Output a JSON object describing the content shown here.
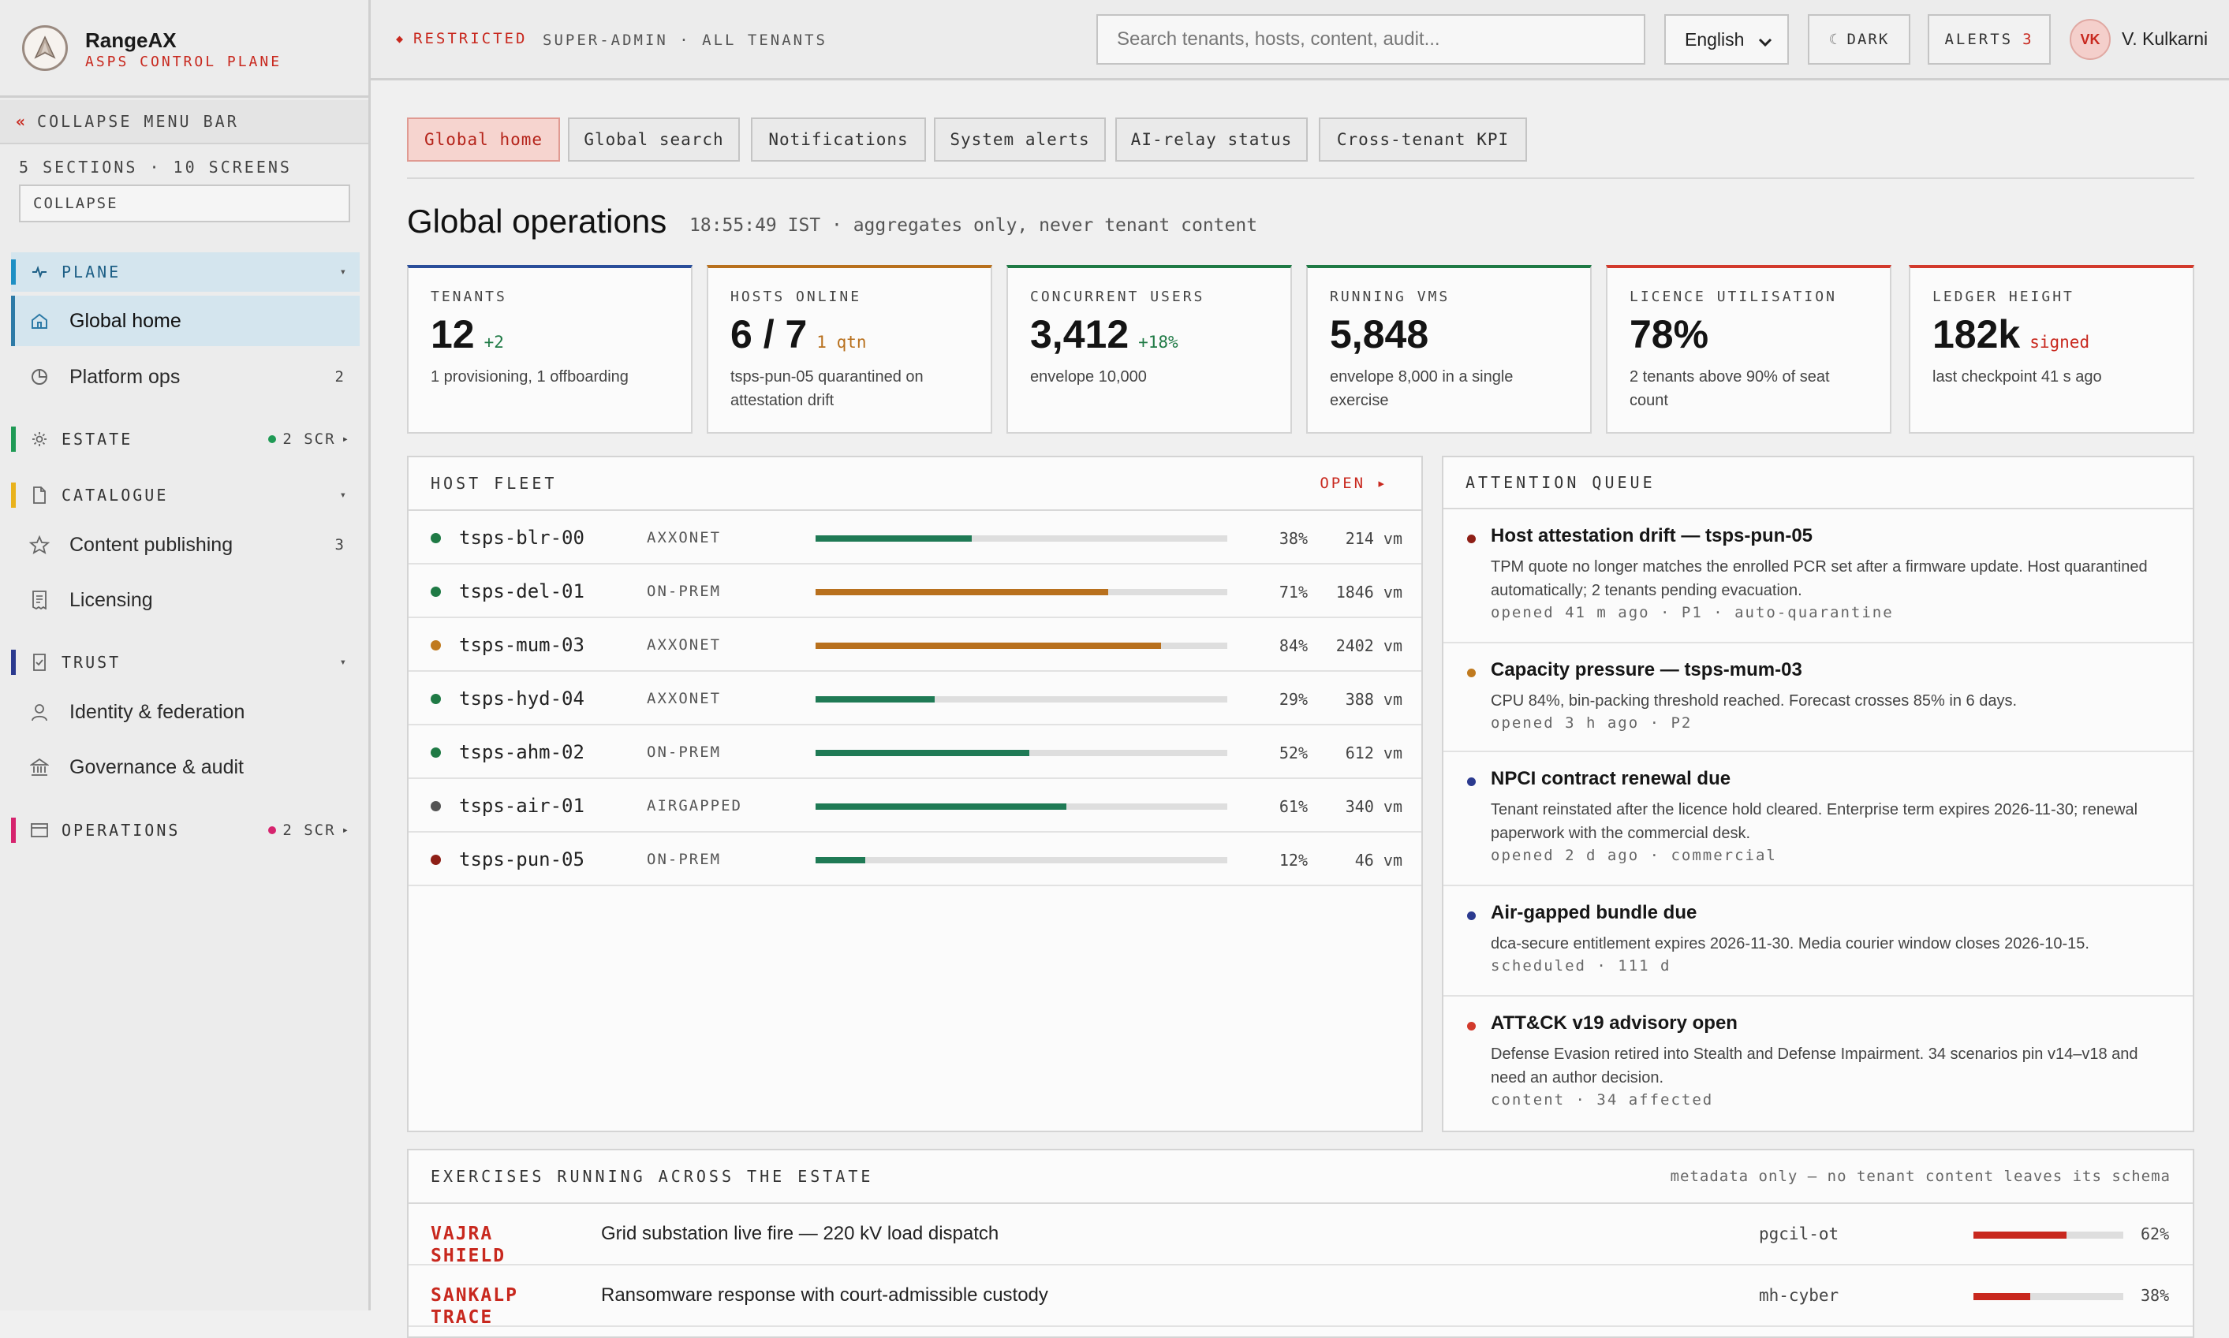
{
  "brand": {
    "name": "RangeAX",
    "subtitle": "ASPS CONTROL PLANE"
  },
  "sidebar": {
    "collapse_menu_label": "COLLAPSE MENU BAR",
    "summary": "5 SECTIONS · 10 SCREENS",
    "collapse_field_value": "COLLAPSE",
    "sections": {
      "plane": {
        "label": "PLANE",
        "color": "#1d8fc4"
      },
      "estate": {
        "label": "ESTATE",
        "meta": "2 SCR",
        "color": "#1f9a55"
      },
      "catalogue": {
        "label": "CATALOGUE",
        "color": "#e9b21c"
      },
      "trust": {
        "label": "TRUST",
        "color": "#2b3a8f"
      },
      "operations": {
        "label": "OPERATIONS",
        "meta": "2 SCR",
        "color": "#d6246e"
      }
    },
    "items": {
      "global_home": {
        "label": "Global home"
      },
      "platform_ops": {
        "label": "Platform ops",
        "count": "2"
      },
      "content_publishing": {
        "label": "Content publishing",
        "count": "3"
      },
      "licensing": {
        "label": "Licensing"
      },
      "identity": {
        "label": "Identity & federation"
      },
      "governance": {
        "label": "Governance & audit"
      }
    }
  },
  "topbar": {
    "restricted": "RESTRICTED",
    "scope": "SUPER-ADMIN · ALL TENANTS",
    "search_placeholder": "Search tenants, hosts, content, audit...",
    "language": "English",
    "dark_label": "DARK",
    "alerts_label": "ALERTS",
    "alerts_count": "3",
    "avatar_initials": "VK",
    "user_name": "V. Kulkarni"
  },
  "tabs": [
    "Global home",
    "Global search",
    "Notifications",
    "System alerts",
    "AI-relay status",
    "Cross-tenant KPI"
  ],
  "page": {
    "title": "Global operations",
    "subtitle": "18:55:49 IST · aggregates only, never tenant content"
  },
  "kpis": [
    {
      "label": "TENANTS",
      "value": "12",
      "delta": "+2",
      "delta_color": "#1f7a45",
      "note": "1 provisioning, 1 offboarding",
      "accent": "#2a4e9a"
    },
    {
      "label": "HOSTS ONLINE",
      "value": "6 / 7",
      "delta": "1 qtn",
      "delta_color": "#b8701d",
      "note": "tsps-pun-05 quarantined on attestation drift",
      "accent": "#b8701d"
    },
    {
      "label": "CONCURRENT USERS",
      "value": "3,412",
      "delta": "+18%",
      "delta_color": "#1f7a45",
      "note": "envelope 10,000",
      "accent": "#1f7a45"
    },
    {
      "label": "RUNNING VMS",
      "value": "5,848",
      "delta": "",
      "delta_color": "#1f7a45",
      "note": "envelope 8,000 in a single exercise",
      "accent": "#1f7a45"
    },
    {
      "label": "LICENCE UTILISATION",
      "value": "78%",
      "delta": "",
      "delta_color": "#c8281e",
      "note": "2 tenants above 90% of seat count",
      "accent": "#d23a2c"
    },
    {
      "label": "LEDGER HEIGHT",
      "value": "182k",
      "delta": "signed",
      "delta_color": "#c8281e",
      "note": "last checkpoint 41 s ago",
      "accent": "#d23a2c"
    }
  ],
  "fleet": {
    "title": "HOST FLEET",
    "open_label": "OPEN ▸",
    "unit": "vm",
    "rows": [
      {
        "host": "tsps-blr-00",
        "kind": "AXXONET",
        "util": 0.38,
        "pct": "38%",
        "vms": "214",
        "status_color": "#1f7a45",
        "bar_color": "#1f7a55"
      },
      {
        "host": "tsps-del-01",
        "kind": "ON-PREM",
        "util": 0.71,
        "pct": "71%",
        "vms": "1846",
        "status_color": "#1f7a45",
        "bar_color": "#b8701d"
      },
      {
        "host": "tsps-mum-03",
        "kind": "AXXONET",
        "util": 0.84,
        "pct": "84%",
        "vms": "2402",
        "status_color": "#c07a1f",
        "bar_color": "#b8701d"
      },
      {
        "host": "tsps-hyd-04",
        "kind": "AXXONET",
        "util": 0.29,
        "pct": "29%",
        "vms": "388",
        "status_color": "#1f7a45",
        "bar_color": "#1f7a55"
      },
      {
        "host": "tsps-ahm-02",
        "kind": "ON-PREM",
        "util": 0.52,
        "pct": "52%",
        "vms": "612",
        "status_color": "#1f7a45",
        "bar_color": "#1f7a55"
      },
      {
        "host": "tsps-air-01",
        "kind": "AIRGAPPED",
        "util": 0.61,
        "pct": "61%",
        "vms": "340",
        "status_color": "#555555",
        "bar_color": "#1f7a55"
      },
      {
        "host": "tsps-pun-05",
        "kind": "ON-PREM",
        "util": 0.12,
        "pct": "12%",
        "vms": "46",
        "status_color": "#8e1f16",
        "bar_color": "#1f7a55"
      }
    ]
  },
  "queue": {
    "title": "ATTENTION QUEUE",
    "items": [
      {
        "title": "Host attestation drift — tsps-pun-05",
        "desc": "TPM quote no longer matches the enrolled PCR set after a firmware update. Host quarantined automatically; 2 tenants pending evacuation.",
        "meta": "opened 41 m ago · P1 · auto-quarantine",
        "color": "#8e1f16"
      },
      {
        "title": "Capacity pressure — tsps-mum-03",
        "desc": "CPU 84%, bin-packing threshold reached. Forecast crosses 85% in 6 days.",
        "meta": "opened 3 h ago · P2",
        "color": "#c07a1f"
      },
      {
        "title": "NPCI contract renewal due",
        "desc": "Tenant reinstated after the licence hold cleared. Enterprise term expires 2026-11-30; renewal paperwork with the commercial desk.",
        "meta": "opened 2 d ago · commercial",
        "color": "#2b3a8f"
      },
      {
        "title": "Air-gapped bundle due",
        "desc": "dca-secure entitlement expires 2026-11-30. Media courier window closes 2026-10-15.",
        "meta": "scheduled · 111 d",
        "color": "#2b3a8f"
      },
      {
        "title": "ATT&CK v19 advisory open",
        "desc": "Defense Evasion retired into Stealth and Defense Impairment. 34 scenarios pin v14–v18 and need an author decision.",
        "meta": "content · 34 affected",
        "color": "#d23a2c"
      }
    ]
  },
  "exercises": {
    "title": "EXERCISES RUNNING ACROSS THE ESTATE",
    "meta": "metadata only — no tenant content leaves its schema",
    "rows": [
      {
        "code": "VAJRA SHIELD",
        "name": "Grid substation live fire — 220 kV load dispatch",
        "tenant": "pgcil-ot",
        "progress": 0.62,
        "pct": "62%"
      },
      {
        "code": "SANKALP TRACE",
        "name": "Ransomware response with court-admissible custody",
        "tenant": "mh-cyber",
        "progress": 0.38,
        "pct": "38%"
      }
    ]
  }
}
